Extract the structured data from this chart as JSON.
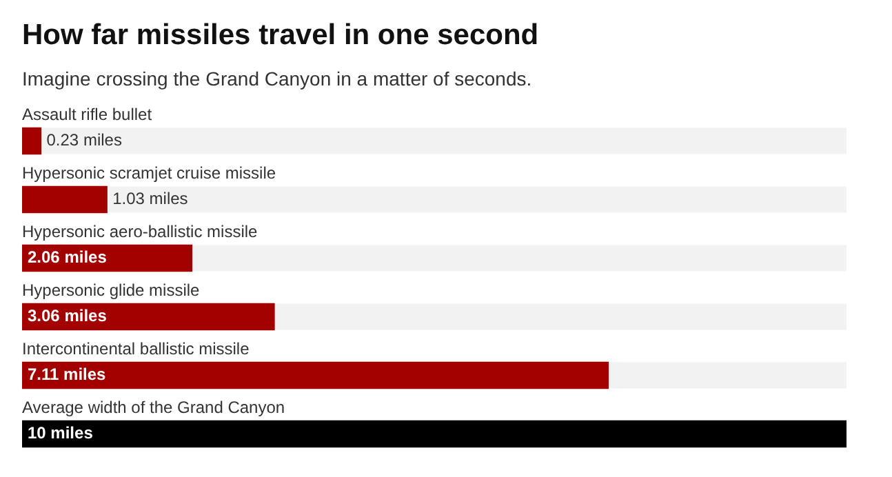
{
  "chart_data": {
    "type": "bar",
    "orientation": "horizontal",
    "title": "How far missiles travel in one second",
    "subtitle": "Imagine crossing the Grand Canyon in a matter of seconds.",
    "categories": [
      "Assault rifle bullet",
      "Hypersonic scramjet cruise missile",
      "Hypersonic aero-ballistic missile",
      "Hypersonic glide missile",
      "Intercontinental ballistic missile",
      "Average width of the Grand Canyon"
    ],
    "values": [
      0.23,
      1.03,
      2.06,
      3.06,
      7.11,
      10
    ],
    "colors": [
      "#a30000",
      "#a30000",
      "#a30000",
      "#a30000",
      "#a30000",
      "#000000"
    ],
    "value_labels": [
      "0.23 miles",
      "1.03 miles",
      "2.06 miles",
      "3.06 miles",
      "7.11 miles",
      "10 miles"
    ],
    "tick_labels": false,
    "legend": false
  }
}
